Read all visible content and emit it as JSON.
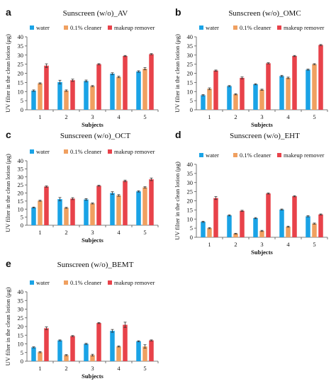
{
  "legend": [
    "water",
    "0.1% cleaner",
    "makeup remover"
  ],
  "colors": {
    "water": "#1aa3e6",
    "cleaner": "#f0a060",
    "makeup_remover": "#e8424a",
    "error_bar": "#333333",
    "axis": "#555555"
  },
  "chart_data": [
    {
      "letter": "a",
      "type": "bar",
      "title": "Sunscreen (w/o)_AV",
      "xlabel": "Subjects",
      "ylabel": "UV  filter in the clean lotion  (μg)",
      "categories": [
        "1",
        "2",
        "3",
        "4",
        "5"
      ],
      "ylim": [
        0,
        40
      ],
      "yticks": [
        0,
        5,
        10,
        15,
        20,
        25,
        30,
        35,
        40
      ],
      "series": [
        {
          "name": "water",
          "values": [
            10.5,
            15.2,
            15.8,
            19.8,
            21.0
          ],
          "errors": [
            0.4,
            1.0,
            0.5,
            0.5,
            0.4
          ]
        },
        {
          "name": "0.1% cleaner",
          "values": [
            14.5,
            10.5,
            13.0,
            18.0,
            22.5
          ],
          "errors": [
            0.3,
            0.4,
            0.3,
            0.4,
            0.6
          ]
        },
        {
          "name": "makeup remover",
          "values": [
            24.2,
            16.2,
            25.0,
            29.5,
            30.5
          ],
          "errors": [
            1.0,
            0.6,
            0.3,
            0.3,
            0.3
          ]
        }
      ]
    },
    {
      "letter": "b",
      "type": "bar",
      "title": "Sunscreen (w/o)_OMC",
      "xlabel": "Subjects",
      "ylabel": "UV  filter in the clean lotion  (μg)",
      "categories": [
        "1",
        "2",
        "3",
        "4",
        "5"
      ],
      "ylim": [
        0,
        40
      ],
      "yticks": [
        0,
        5,
        10,
        15,
        20,
        25,
        30,
        35,
        40
      ],
      "series": [
        {
          "name": "water",
          "values": [
            8.0,
            13.0,
            14.0,
            18.5,
            22.0
          ],
          "errors": [
            0.3,
            0.3,
            0.3,
            0.4,
            0.3
          ]
        },
        {
          "name": "0.1% cleaner",
          "values": [
            11.5,
            8.5,
            11.0,
            17.5,
            25.0
          ],
          "errors": [
            0.5,
            0.3,
            0.3,
            0.4,
            0.3
          ]
        },
        {
          "name": "makeup remover",
          "values": [
            21.5,
            17.5,
            25.5,
            29.5,
            35.5
          ],
          "errors": [
            0.3,
            0.5,
            0.3,
            0.3,
            0.3
          ]
        }
      ]
    },
    {
      "letter": "c",
      "type": "bar",
      "title": "Sunscreen (w/o)_OCT",
      "xlabel": "Subjects",
      "ylabel": "UV  filter in the clean lotion  (μg)",
      "categories": [
        "1",
        "2",
        "3",
        "4",
        "5"
      ],
      "ylim": [
        0,
        40
      ],
      "yticks": [
        0,
        5,
        10,
        15,
        20,
        25,
        30,
        35,
        40
      ],
      "series": [
        {
          "name": "water",
          "values": [
            11.0,
            16.2,
            16.0,
            20.0,
            21.0
          ],
          "errors": [
            0.3,
            1.0,
            0.5,
            0.8,
            0.4
          ]
        },
        {
          "name": "0.1% cleaner",
          "values": [
            15.2,
            10.8,
            13.5,
            18.5,
            23.5
          ],
          "errors": [
            0.3,
            0.3,
            0.3,
            0.5,
            0.4
          ]
        },
        {
          "name": "makeup remover",
          "values": [
            24.0,
            16.5,
            24.5,
            27.5,
            28.5
          ],
          "errors": [
            0.4,
            0.6,
            0.3,
            0.5,
            0.8
          ]
        }
      ]
    },
    {
      "letter": "d",
      "type": "bar",
      "title": "Sunscreen (w/o)_EHT",
      "xlabel": "Subjects",
      "ylabel": "UV  filter in the clean lotion  (μg)",
      "categories": [
        "1",
        "2",
        "3",
        "4",
        "5"
      ],
      "ylim": [
        0,
        40
      ],
      "yticks": [
        0,
        5,
        10,
        15,
        20,
        25,
        30,
        35,
        40
      ],
      "series": [
        {
          "name": "water",
          "values": [
            8.5,
            12.0,
            10.5,
            15.2,
            11.5
          ],
          "errors": [
            0.3,
            0.3,
            0.3,
            0.3,
            0.3
          ]
        },
        {
          "name": "0.1% cleaner",
          "values": [
            5.0,
            2.0,
            3.5,
            5.8,
            7.5
          ],
          "errors": [
            0.3,
            0.2,
            0.3,
            0.3,
            0.3
          ]
        },
        {
          "name": "makeup remover",
          "values": [
            21.5,
            14.5,
            24.0,
            22.5,
            12.5
          ],
          "errors": [
            0.8,
            0.3,
            0.3,
            0.3,
            0.3
          ]
        }
      ]
    },
    {
      "letter": "e",
      "type": "bar",
      "title": "Sunscreen (w/o)_BEMT",
      "xlabel": "Subjects",
      "ylabel": "UV  filter in the clean lotion  (μg)",
      "categories": [
        "1",
        "2",
        "3",
        "4",
        "5"
      ],
      "ylim": [
        0,
        40
      ],
      "yticks": [
        0,
        5,
        10,
        15,
        20,
        25,
        30,
        35,
        40
      ],
      "series": [
        {
          "name": "water",
          "values": [
            8.0,
            12.0,
            10.0,
            17.5,
            11.5
          ],
          "errors": [
            0.3,
            0.3,
            0.3,
            0.8,
            0.3
          ]
        },
        {
          "name": "0.1% cleaner",
          "values": [
            5.2,
            3.5,
            3.5,
            8.5,
            8.5
          ],
          "errors": [
            0.3,
            0.3,
            0.5,
            0.3,
            1.0
          ]
        },
        {
          "name": "makeup remover",
          "values": [
            19.0,
            14.5,
            22.0,
            21.0,
            12.0
          ],
          "errors": [
            0.8,
            0.3,
            0.3,
            1.5,
            0.3
          ]
        }
      ]
    }
  ]
}
